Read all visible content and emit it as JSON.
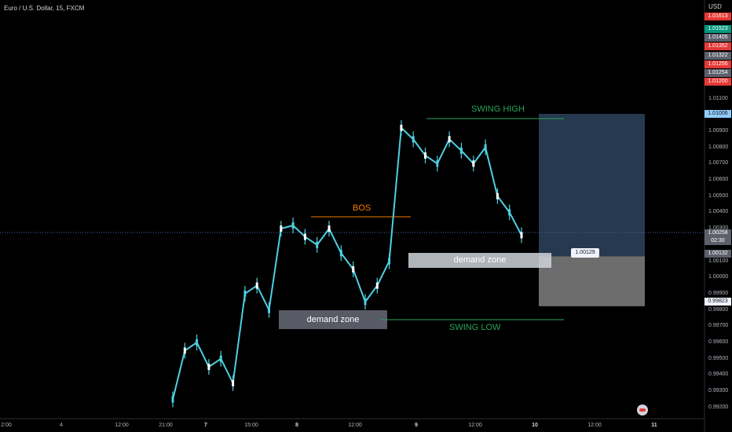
{
  "legend": "Euro / U.S. Dollar, 15, FXCM",
  "price_axis": {
    "currency": "USD",
    "ticks": [
      "1.01100",
      "1.00900",
      "1.00800",
      "1.00700",
      "1.00600",
      "1.00500",
      "1.00400",
      "1.00300",
      "1.00100",
      "1.00000",
      "0.99900",
      "0.99800",
      "0.99700",
      "0.99600",
      "0.99500",
      "0.99400",
      "0.99300",
      "0.99200"
    ],
    "badges": [
      {
        "text": "1.01613",
        "color": "#e53935"
      },
      {
        "text": "1.01523",
        "color": "#089981"
      },
      {
        "text": "1.01405",
        "color": "#5d606b"
      },
      {
        "text": "1.01352",
        "color": "#e53935"
      },
      {
        "text": "1.01322",
        "color": "#5d606b"
      },
      {
        "text": "1.01256",
        "color": "#e53935"
      },
      {
        "text": "1.01254",
        "color": "#5d606b"
      },
      {
        "text": "1.01200",
        "color": "#e53935"
      },
      {
        "text": "1.01006",
        "color": "#90caf9"
      },
      {
        "text": "1.00258",
        "color": "#5d606b"
      },
      {
        "text": "02:30",
        "color": "#5d606b"
      },
      {
        "text": "1.00132",
        "color": "#5d606b"
      },
      {
        "text": "0.99823",
        "color": "#f0f3fa"
      }
    ]
  },
  "time_axis": [
    "2:00",
    "4",
    "12:00",
    "21:00",
    "7",
    "15:00",
    "8",
    "12:00",
    "9",
    "12:00",
    "10",
    "12:00",
    "11"
  ],
  "annotations": {
    "swing_high": "SWING HIGH",
    "swing_low": "SWING LOW",
    "bos": "BOS",
    "demand_zone_1": "demand zone",
    "demand_zone_2": "demand zone",
    "price_tag": "1.00129"
  },
  "colors": {
    "background": "#000000",
    "candle": "#4dd0e1",
    "swing": "#26a65b",
    "bos": "#f57c00",
    "demand": "#b2b5be",
    "profit_zone": "#2a3f57",
    "loss_zone": "#808080"
  },
  "chart_data": {
    "type": "line",
    "title": "Euro / U.S. Dollar, 15, FXCM",
    "ylabel": "USD",
    "ylim": [
      0.9915,
      1.0165
    ],
    "series": [
      {
        "name": "Euro / U.S. Dollar",
        "values": [
          0.9925,
          0.9955,
          0.996,
          0.9945,
          0.995,
          0.9935,
          0.999,
          0.9995,
          0.998,
          1.003,
          1.0032,
          1.0025,
          1.002,
          1.003,
          1.0015,
          1.0005,
          0.9985,
          0.9995,
          1.001,
          1.0092,
          1.0085,
          1.0075,
          1.007,
          1.0085,
          1.0078,
          1.007,
          1.008,
          1.005,
          1.004,
          1.0026
        ]
      }
    ],
    "levels": {
      "swing_high": 1.0092,
      "swing_low": 0.9972,
      "bos": 1.0036,
      "entry": 1.0013,
      "target": 1.01006,
      "stop": 0.99823
    }
  }
}
